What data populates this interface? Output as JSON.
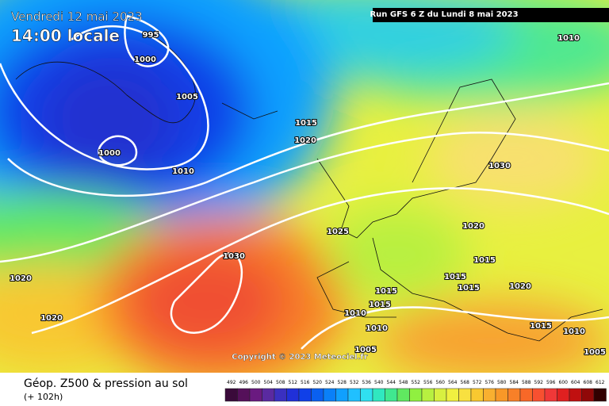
{
  "header": {
    "date": "Vendredi 12 mai 2023",
    "time": "14:00 locale",
    "run": "Run GFS 6 Z du Lundi 8 mai 2023"
  },
  "isobar_labels": [
    "995",
    "1000",
    "1005",
    "1000",
    "1010",
    "1015",
    "1020",
    "1010",
    "1030",
    "1025",
    "1020",
    "1030",
    "1020",
    "1015",
    "1015",
    "1015",
    "1015",
    "1020",
    "1015",
    "1010",
    "1010",
    "1020",
    "1015",
    "1010",
    "1005",
    "1005"
  ],
  "copyright": "Copyright © 2023 Meteociel.fr",
  "footer": {
    "title": "Géop. Z500 & pression au sol",
    "lead": "(+ 102h)"
  },
  "legend": {
    "values": [
      492,
      496,
      500,
      504,
      508,
      512,
      516,
      520,
      524,
      528,
      532,
      536,
      540,
      544,
      548,
      552,
      556,
      560,
      564,
      568,
      572,
      576,
      580,
      584,
      588,
      592,
      596,
      600,
      604,
      608,
      612
    ],
    "colors": [
      "#3a0a3a",
      "#55105a",
      "#6a1a80",
      "#5a2aa0",
      "#3a30c0",
      "#2030d8",
      "#1040e8",
      "#0a60f0",
      "#0a80f8",
      "#10a0ff",
      "#20c0ff",
      "#30e0f0",
      "#30e8c0",
      "#40e890",
      "#60e860",
      "#90f040",
      "#b8f040",
      "#d8f040",
      "#f0f040",
      "#f8e040",
      "#f8c830",
      "#f8b030",
      "#f89828",
      "#f88028",
      "#f86828",
      "#f85030",
      "#f03838",
      "#e02020",
      "#c01010",
      "#900808",
      "#300000"
    ]
  }
}
